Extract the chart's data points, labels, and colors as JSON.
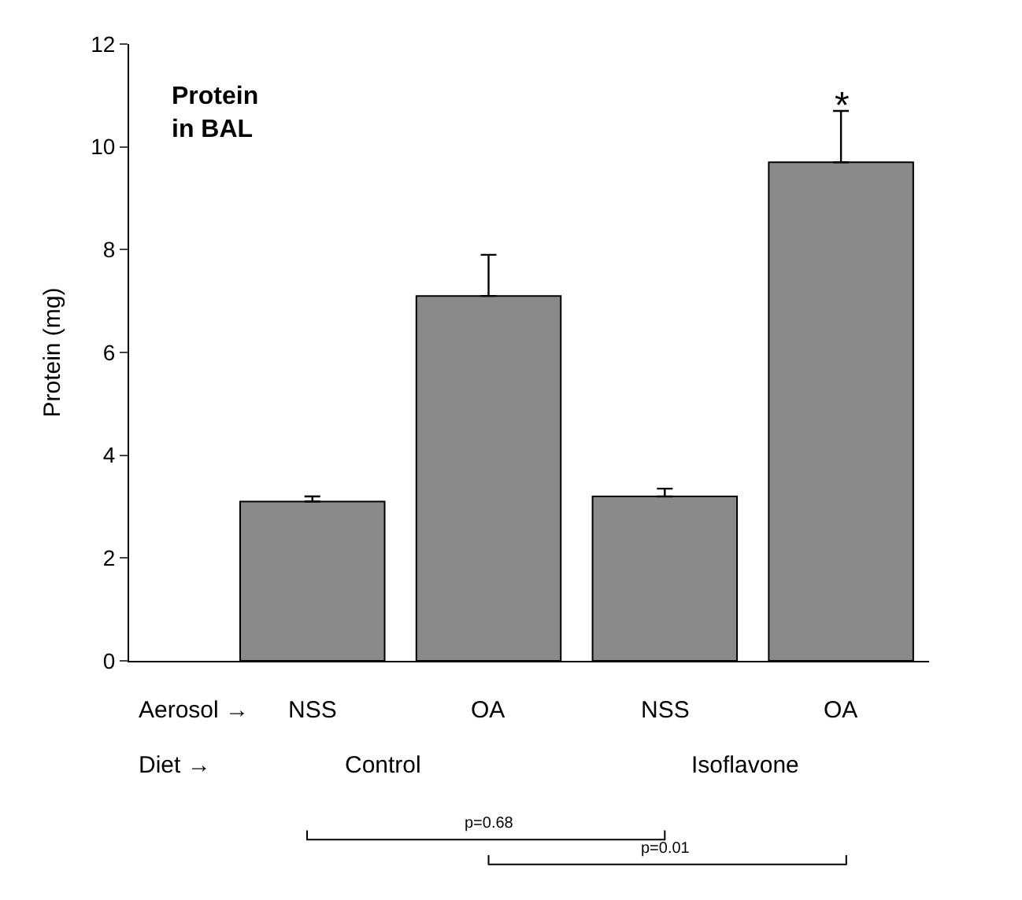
{
  "chart_data": {
    "type": "bar",
    "title": "Protein\nin BAL",
    "ylabel": "Protein (mg)",
    "categories": [
      "NSS",
      "OA",
      "NSS",
      "OA"
    ],
    "values": [
      3.1,
      7.1,
      3.2,
      9.7
    ],
    "errors": [
      [
        3.1,
        3.2
      ],
      [
        7.1,
        7.9
      ],
      [
        3.2,
        3.35
      ],
      [
        9.7,
        10.7
      ]
    ],
    "color": "#8a8a8a",
    "ylim": [
      0,
      12
    ],
    "yticks": [
      0,
      2,
      4,
      6,
      8,
      10,
      12
    ],
    "annotations": [
      "*",
      "Aerosol →",
      "Diet →",
      "Control",
      "Isoflavone",
      "p=0.68",
      "p=0.01"
    ]
  }
}
